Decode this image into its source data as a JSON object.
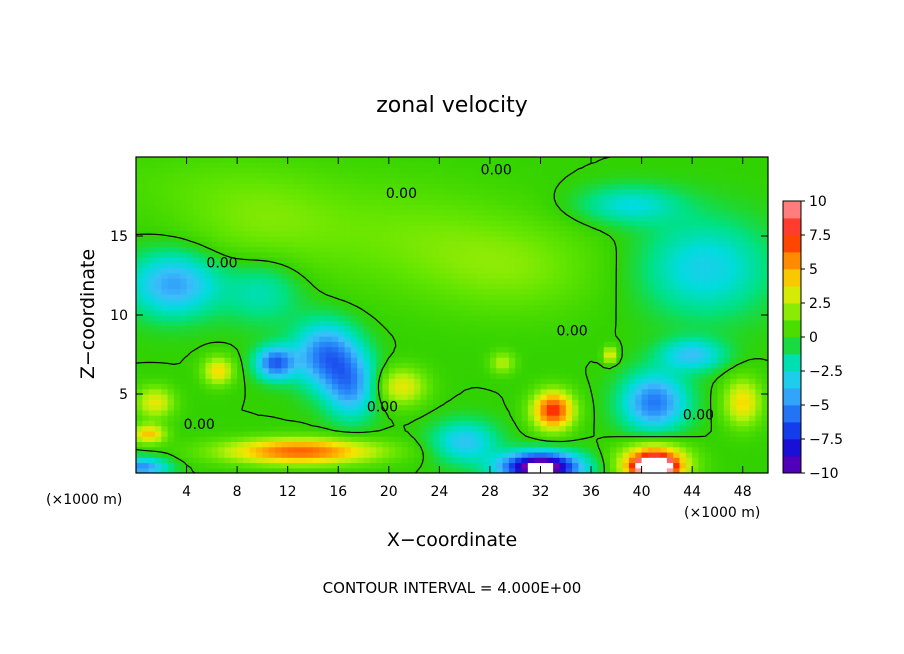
{
  "chart_data": {
    "type": "heatmap",
    "title": "zonal velocity",
    "xlabel": "X−coordinate",
    "ylabel": "Z−coordinate",
    "x_unit": "(×1000 m)",
    "y_unit": "(×1000 m)",
    "xlim": [
      0,
      50
    ],
    "ylim": [
      0,
      20
    ],
    "x_ticks": [
      4,
      8,
      12,
      16,
      20,
      24,
      28,
      32,
      36,
      40,
      44,
      48
    ],
    "y_ticks": [
      5,
      10,
      15
    ],
    "colorbar": {
      "min": -10,
      "max": 10,
      "ticks": [
        10,
        7.5,
        5,
        2.5,
        0,
        -2.5,
        -5,
        -7.5,
        -10
      ],
      "tick_labels": [
        "10",
        "7.5",
        "5",
        "2.5",
        "0",
        "−2.5",
        "−5",
        "−7.5",
        "−10"
      ]
    },
    "contour_interval_text": "CONTOUR INTERVAL = 4.000E+00",
    "contour_label": "0.00",
    "contour_label_positions": [
      [
        28.5,
        18.9
      ],
      [
        21,
        17.4
      ],
      [
        6.8,
        13
      ],
      [
        34.5,
        8.7
      ],
      [
        5,
        2.8
      ],
      [
        19.5,
        3.9
      ],
      [
        44.5,
        3.4
      ]
    ],
    "field_features": [
      {
        "x": 4,
        "y": 18.5,
        "value": 0.5,
        "sx": 9,
        "sy": 2
      },
      {
        "x": 10,
        "y": 16,
        "value": 1.5,
        "sx": 7,
        "sy": 3
      },
      {
        "x": 22,
        "y": 15,
        "value": 1.2,
        "sx": 8,
        "sy": 3.5
      },
      {
        "x": 30,
        "y": 13,
        "value": 1.5,
        "sx": 7,
        "sy": 3
      },
      {
        "x": 3,
        "y": 12,
        "value": -4.5,
        "sx": 3.5,
        "sy": 2
      },
      {
        "x": 10,
        "y": 11.5,
        "value": -2,
        "sx": 3,
        "sy": 2
      },
      {
        "x": 45,
        "y": 13,
        "value": -3,
        "sx": 5,
        "sy": 3
      },
      {
        "x": 39,
        "y": 17,
        "value": -2.5,
        "sx": 4,
        "sy": 1.2
      },
      {
        "x": 15,
        "y": 7.5,
        "value": -5.5,
        "sx": 2.5,
        "sy": 2
      },
      {
        "x": 11,
        "y": 7,
        "value": -6,
        "sx": 1.5,
        "sy": 1
      },
      {
        "x": 17,
        "y": 5.5,
        "value": -4.5,
        "sx": 2,
        "sy": 2
      },
      {
        "x": 41,
        "y": 4.5,
        "value": -5.5,
        "sx": 2.5,
        "sy": 1.8
      },
      {
        "x": 44,
        "y": 7.5,
        "value": -3.5,
        "sx": 2.5,
        "sy": 1
      },
      {
        "x": 26,
        "y": 2,
        "value": -3.5,
        "sx": 2.5,
        "sy": 1.3
      },
      {
        "x": 0.5,
        "y": 0.4,
        "value": -5,
        "sx": 2,
        "sy": 0.6
      },
      {
        "x": 32,
        "y": 0.4,
        "value": -12,
        "sx": 3,
        "sy": 0.9
      },
      {
        "x": 13,
        "y": 1.4,
        "value": 6.5,
        "sx": 6,
        "sy": 0.8
      },
      {
        "x": 33,
        "y": 4,
        "value": 7.5,
        "sx": 1.6,
        "sy": 1.2
      },
      {
        "x": 21,
        "y": 5.5,
        "value": 3.5,
        "sx": 2,
        "sy": 1.2
      },
      {
        "x": 6.5,
        "y": 6.5,
        "value": 4,
        "sx": 1.2,
        "sy": 0.9
      },
      {
        "x": 1.5,
        "y": 4.5,
        "value": 3.5,
        "sx": 1.5,
        "sy": 1
      },
      {
        "x": 1,
        "y": 2.5,
        "value": 4.5,
        "sx": 1.3,
        "sy": 0.6
      },
      {
        "x": 48,
        "y": 4.5,
        "value": 4,
        "sx": 1.5,
        "sy": 1.5
      },
      {
        "x": 37.5,
        "y": 7.5,
        "value": 4,
        "sx": 0.5,
        "sy": 0.5
      },
      {
        "x": 29,
        "y": 7,
        "value": 2.5,
        "sx": 1,
        "sy": 0.7
      },
      {
        "x": 41,
        "y": 0.6,
        "value": 9,
        "sx": 2.5,
        "sy": 1.2
      },
      {
        "x": 41,
        "y": 0.4,
        "value": 12,
        "sx": 1.3,
        "sy": 0.5
      }
    ]
  }
}
